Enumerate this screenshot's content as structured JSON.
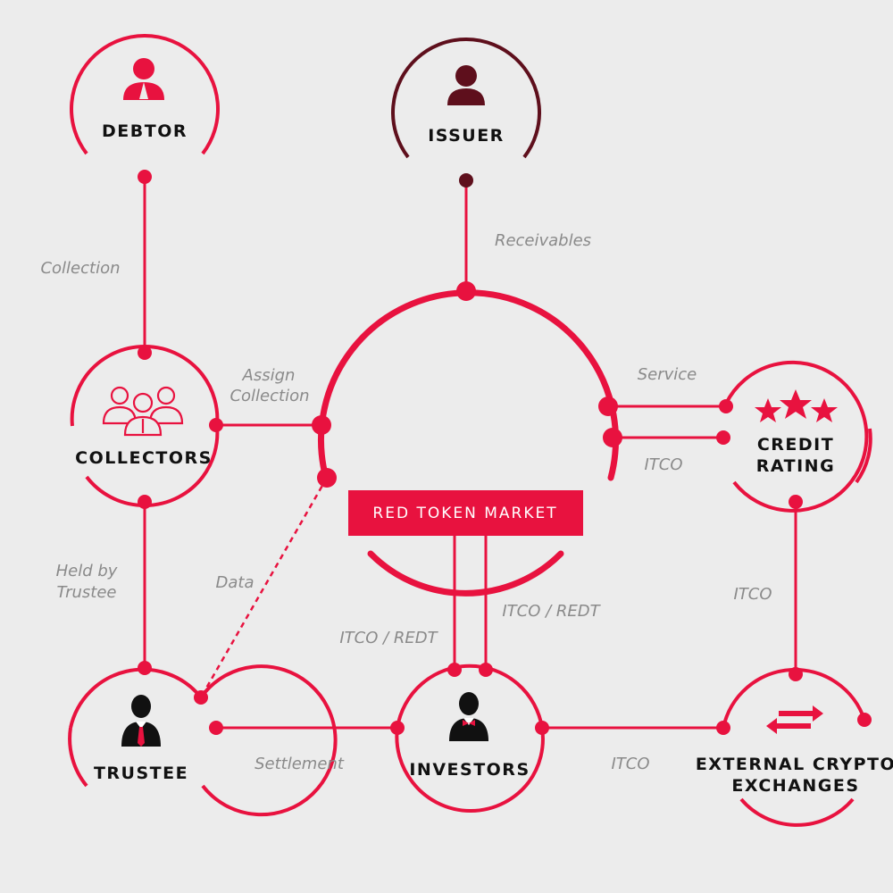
{
  "colors": {
    "accent": "#e8123f",
    "issuer": "#5e0f1c",
    "background": "#ececec",
    "label_gray": "#8a8a8a",
    "text": "#111111"
  },
  "nodes": {
    "debtor": {
      "label": "DEBTOR",
      "icon": "person-icon"
    },
    "issuer": {
      "label": "ISSUER",
      "icon": "person-icon"
    },
    "collectors": {
      "label": "COLLECTORS",
      "icon": "group-icon"
    },
    "credit_rating": {
      "label_line1": "CREDIT",
      "label_line2": "RATING",
      "icon": "stars-icon"
    },
    "trustee": {
      "label": "TRUSTEE",
      "icon": "businessman-icon"
    },
    "investors": {
      "label": "INVESTORS",
      "icon": "bowtie-person-icon"
    },
    "external": {
      "label_line1": "EXTERNAL CRYPTO",
      "label_line2": "EXCHANGES",
      "icon": "exchange-arrows-icon"
    },
    "market": {
      "label": "RED TOKEN MARKET"
    }
  },
  "edges": {
    "collection": "Collection",
    "receivables": "Receivables",
    "assign_line1": "Assign",
    "assign_line2": "Collection",
    "service": "Service",
    "itco_credit": "ITCO",
    "held_line1": "Held by",
    "held_line2": "Trustee",
    "data": "Data",
    "itco_redt_left": "ITCO / REDT",
    "itco_redt_right": "ITCO / REDT",
    "itco_rating_exchange": "ITCO",
    "settlement": "Settlement",
    "itco_investors_exchange": "ITCO"
  }
}
